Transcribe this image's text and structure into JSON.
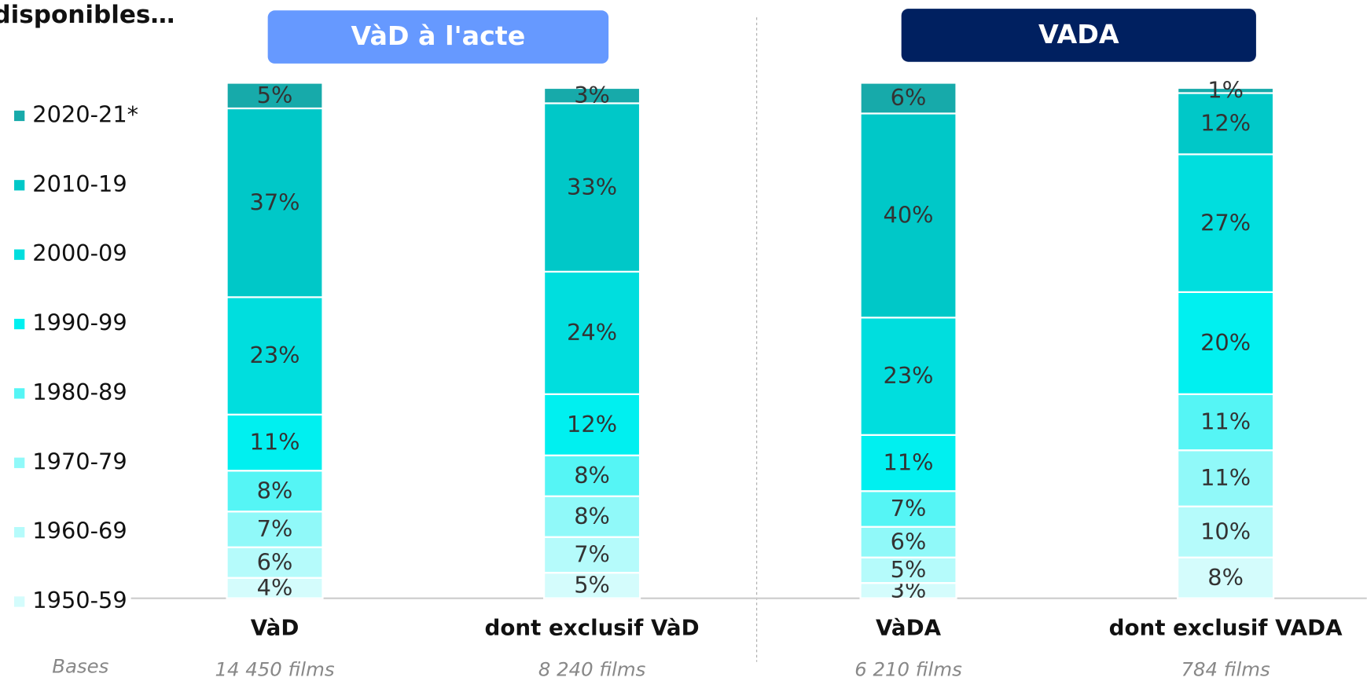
{
  "chart_data": {
    "type": "bar",
    "stacked": true,
    "title": "disponibles…",
    "groups": [
      {
        "label": "VàD à l'acte",
        "color": "#6699ff"
      },
      {
        "label": "VADA",
        "color": "#002060"
      }
    ],
    "categories": [
      "VàD",
      "dont exclusif VàD",
      "VàDA",
      "dont exclusif VADA"
    ],
    "bases_label": "Bases",
    "bases": [
      "14 450 films",
      "8 240 films",
      "6 210 films",
      "784 films"
    ],
    "ylim": [
      0,
      100
    ],
    "series": [
      {
        "name": "1950-59",
        "color": "#d4fcfc",
        "values": [
          4,
          5,
          3,
          8
        ],
        "value_labels": [
          "4%",
          "5%",
          "3%",
          "8%"
        ]
      },
      {
        "name": "1960-69",
        "color": "#b5fbfb",
        "values": [
          6,
          7,
          5,
          10
        ],
        "value_labels": [
          "6%",
          "7%",
          "5%",
          "10%"
        ]
      },
      {
        "name": "1970-79",
        "color": "#90f9f9",
        "values": [
          7,
          8,
          6,
          11
        ],
        "value_labels": [
          "7%",
          "8%",
          "6%",
          "11%"
        ]
      },
      {
        "name": "1980-89",
        "color": "#55f5f5",
        "values": [
          8,
          8,
          7,
          11
        ],
        "value_labels": [
          "8%",
          "8%",
          "7%",
          "11%"
        ]
      },
      {
        "name": "1990-99",
        "color": "#00f0f0",
        "values": [
          11,
          12,
          11,
          20
        ],
        "value_labels": [
          "11%",
          "12%",
          "11%",
          "20%"
        ]
      },
      {
        "name": "2000-09",
        "color": "#00dede",
        "values": [
          23,
          24,
          23,
          27
        ],
        "value_labels": [
          "23%",
          "24%",
          "23%",
          "27%"
        ]
      },
      {
        "name": "2010-19",
        "color": "#00c8c8",
        "values": [
          37,
          33,
          40,
          12
        ],
        "value_labels": [
          "37%",
          "33%",
          "40%",
          "12%"
        ]
      },
      {
        "name": "2020-21*",
        "color": "#17aaaa",
        "values": [
          5,
          3,
          6,
          1
        ],
        "value_labels": [
          "5%",
          "3%",
          "6%",
          "1%"
        ]
      }
    ]
  }
}
